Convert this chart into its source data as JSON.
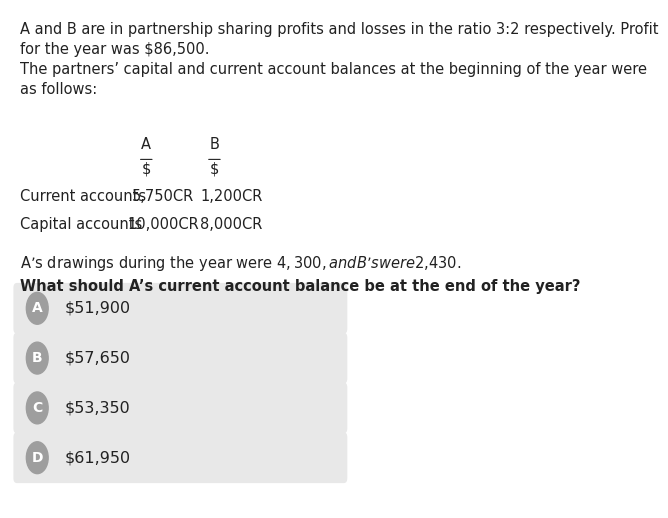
{
  "bg_color": "#ffffff",
  "text_color": "#222222",
  "paragraph1": "A and B are in partnership sharing profits and losses in the ratio 3:2 respectively. Profit\nfor the year was $86,500.",
  "paragraph2": "The partners’ capital and current account balances at the beginning of the year were\nas follows:",
  "col_header_A": "A",
  "col_header_B": "B",
  "col_subheader_A": "$",
  "col_subheader_B": "$",
  "row1_label": "Current accounts",
  "row1_A": "5,750CR",
  "row1_B": "1,200CR",
  "row2_label": "Capital accounts",
  "row2_A": "10,000CR",
  "row2_B": "8,000CR",
  "paragraph3": "A’s drawings during the year were $4,300, and B’s were $2,430.",
  "question": "What should A’s current account balance be at the end of the year?",
  "options": [
    {
      "letter": "A",
      "text": "$51,900"
    },
    {
      "letter": "B",
      "text": "$57,650"
    },
    {
      "letter": "C",
      "text": "$53,350"
    },
    {
      "letter": "D",
      "text": "$61,950"
    }
  ],
  "option_bg": "#e8e8e8",
  "circle_color": "#9e9e9e",
  "circle_text_color": "#ffffff",
  "font_size_body": 10.5,
  "font_size_option": 11.5
}
